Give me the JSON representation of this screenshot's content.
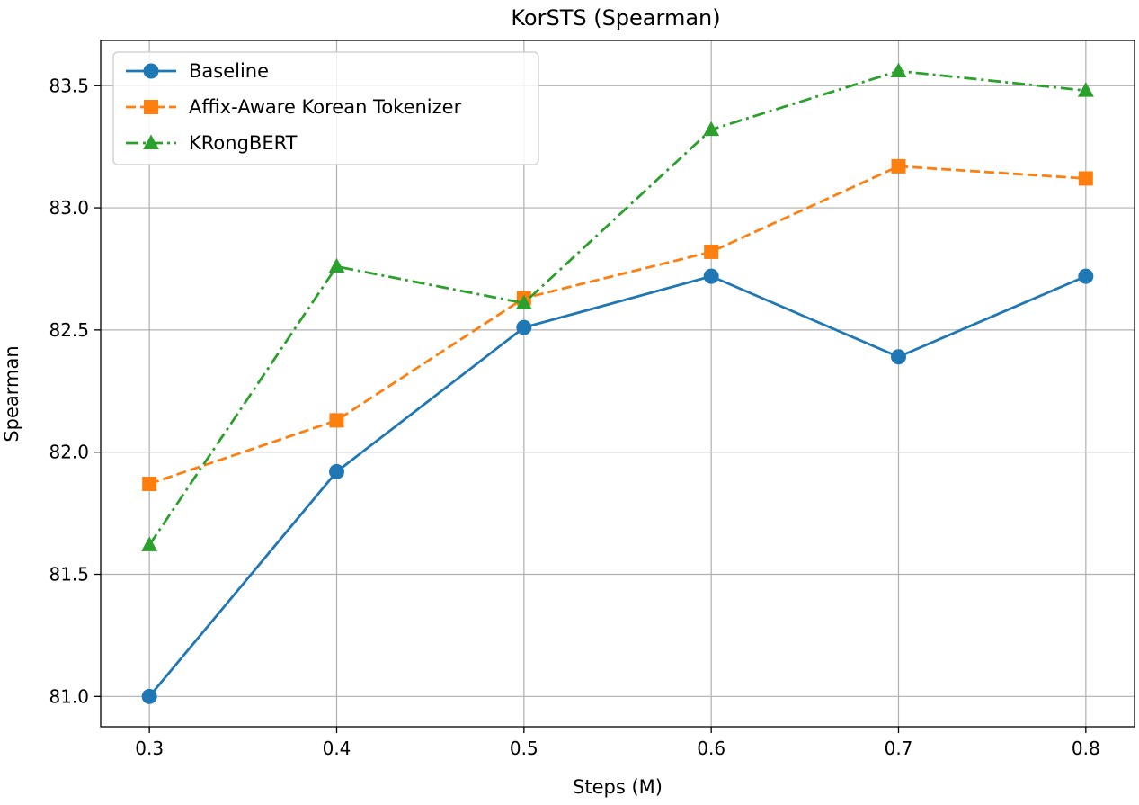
{
  "chart_data": {
    "type": "line",
    "title": "KorSTS (Spearman)",
    "xlabel": "Steps (M)",
    "ylabel": "Spearman",
    "x": [
      0.3,
      0.4,
      0.5,
      0.6,
      0.7,
      0.8
    ],
    "x_tick_labels": [
      "0.3",
      "0.4",
      "0.5",
      "0.6",
      "0.7",
      "0.8"
    ],
    "y_ticks": [
      81.0,
      81.5,
      82.0,
      82.5,
      83.0,
      83.5
    ],
    "y_tick_labels": [
      "81.0",
      "81.5",
      "82.0",
      "82.5",
      "83.0",
      "83.5"
    ],
    "xlim": [
      0.274,
      0.826
    ],
    "ylim": [
      80.876,
      83.685
    ],
    "grid": true,
    "legend_position": "upper-left",
    "series": [
      {
        "name": "Baseline",
        "values": [
          81.0,
          81.92,
          82.51,
          82.72,
          82.39,
          82.72
        ],
        "color": "#1f77b4",
        "marker": "circle",
        "linestyle": "solid"
      },
      {
        "name": "Affix-Aware Korean Tokenizer",
        "values": [
          81.87,
          82.13,
          82.63,
          82.82,
          83.17,
          83.12
        ],
        "color": "#ff7f0e",
        "marker": "square",
        "linestyle": "dashed"
      },
      {
        "name": "KRongBERT",
        "values": [
          81.62,
          82.76,
          82.61,
          83.32,
          83.56,
          83.48
        ],
        "color": "#2ca02c",
        "marker": "triangle",
        "linestyle": "dashdot"
      }
    ]
  }
}
